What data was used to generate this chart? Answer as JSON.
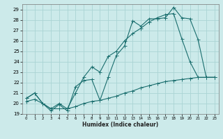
{
  "xlabel": "Humidex (Indice chaleur)",
  "xlim": [
    -0.5,
    23.5
  ],
  "ylim": [
    19,
    29.5
  ],
  "background_color": "#cceaea",
  "grid_color": "#aad4d4",
  "line_color": "#1a6e6e",
  "x_ticks": [
    0,
    1,
    2,
    3,
    4,
    5,
    6,
    7,
    8,
    9,
    10,
    11,
    12,
    13,
    14,
    15,
    16,
    17,
    18,
    19,
    20,
    21,
    22,
    23
  ],
  "y_ticks": [
    19,
    20,
    21,
    22,
    23,
    24,
    25,
    26,
    27,
    28,
    29
  ],
  "line1_x": [
    0,
    1,
    2,
    3,
    4,
    5,
    6,
    7,
    8,
    9,
    10,
    11,
    12,
    13,
    14,
    15,
    16,
    17,
    18,
    19,
    20,
    21,
    22,
    23
  ],
  "line1_y": [
    20.5,
    21.0,
    20.0,
    19.3,
    19.9,
    19.3,
    21.6,
    22.2,
    22.3,
    20.3,
    22.5,
    24.6,
    25.5,
    27.9,
    27.4,
    28.1,
    28.1,
    28.2,
    29.2,
    28.2,
    28.1,
    26.1,
    22.5,
    22.5
  ],
  "line2_x": [
    0,
    1,
    2,
    3,
    4,
    5,
    6,
    7,
    8,
    9,
    10,
    11,
    12,
    13,
    14,
    15,
    16,
    17,
    18,
    19,
    20,
    21,
    22,
    23
  ],
  "line2_y": [
    20.5,
    21.0,
    20.0,
    19.5,
    20.0,
    19.5,
    21.0,
    22.5,
    23.5,
    23.0,
    24.5,
    25.0,
    26.0,
    26.7,
    27.2,
    27.8,
    28.2,
    28.5,
    28.6,
    26.2,
    24.0,
    22.5,
    22.5,
    22.5
  ],
  "line3_x": [
    0,
    1,
    2,
    3,
    4,
    5,
    6,
    7,
    8,
    9,
    10,
    11,
    12,
    13,
    14,
    15,
    16,
    17,
    18,
    19,
    20,
    21,
    22,
    23
  ],
  "line3_y": [
    20.2,
    20.4,
    20.0,
    19.5,
    19.5,
    19.5,
    19.7,
    20.0,
    20.2,
    20.3,
    20.5,
    20.7,
    21.0,
    21.2,
    21.5,
    21.7,
    21.9,
    22.1,
    22.2,
    22.3,
    22.4,
    22.5,
    22.5,
    22.5
  ]
}
